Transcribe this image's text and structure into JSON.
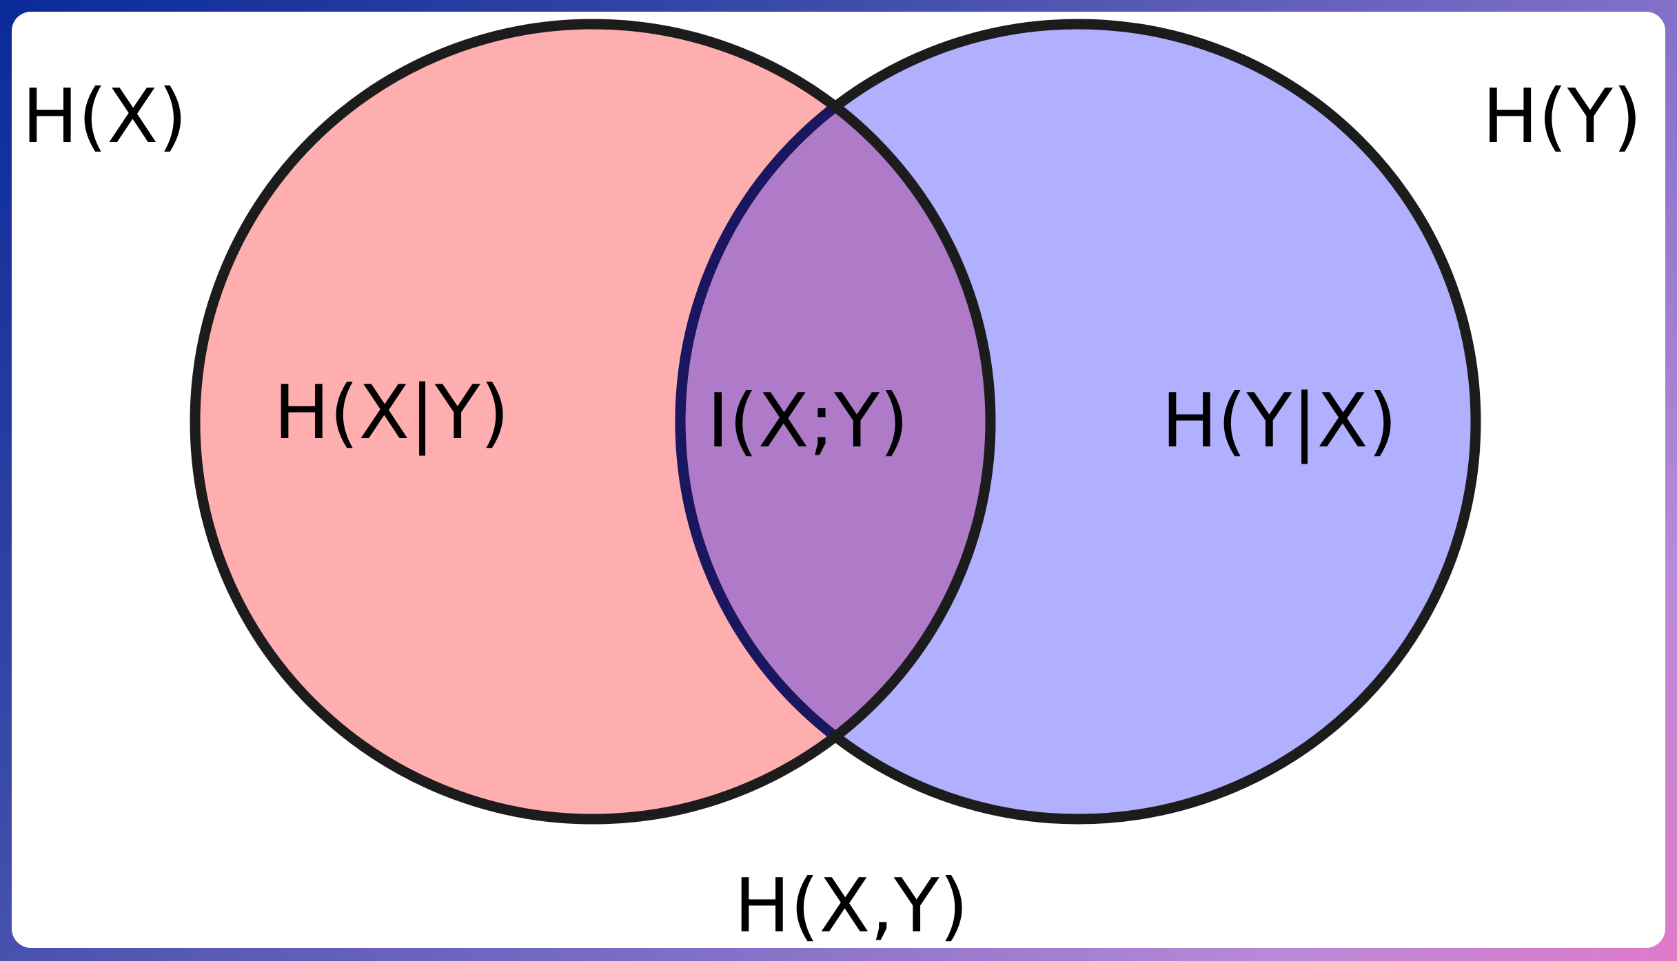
{
  "diagram": {
    "labels": {
      "hx": "H(X)",
      "hy": "H(Y)",
      "hx_given_y": "H(X|Y)",
      "mutual_info": "I(X;Y)",
      "hy_given_x": "H(Y|X)",
      "joint": "H(X,Y)"
    },
    "colors": {
      "left_set": "#ffaeb0",
      "right_set": "#b1b0ff",
      "intersection": "#af7bc8",
      "outline": "#1c1c1c",
      "intersection_edge": "#1a1660"
    }
  }
}
